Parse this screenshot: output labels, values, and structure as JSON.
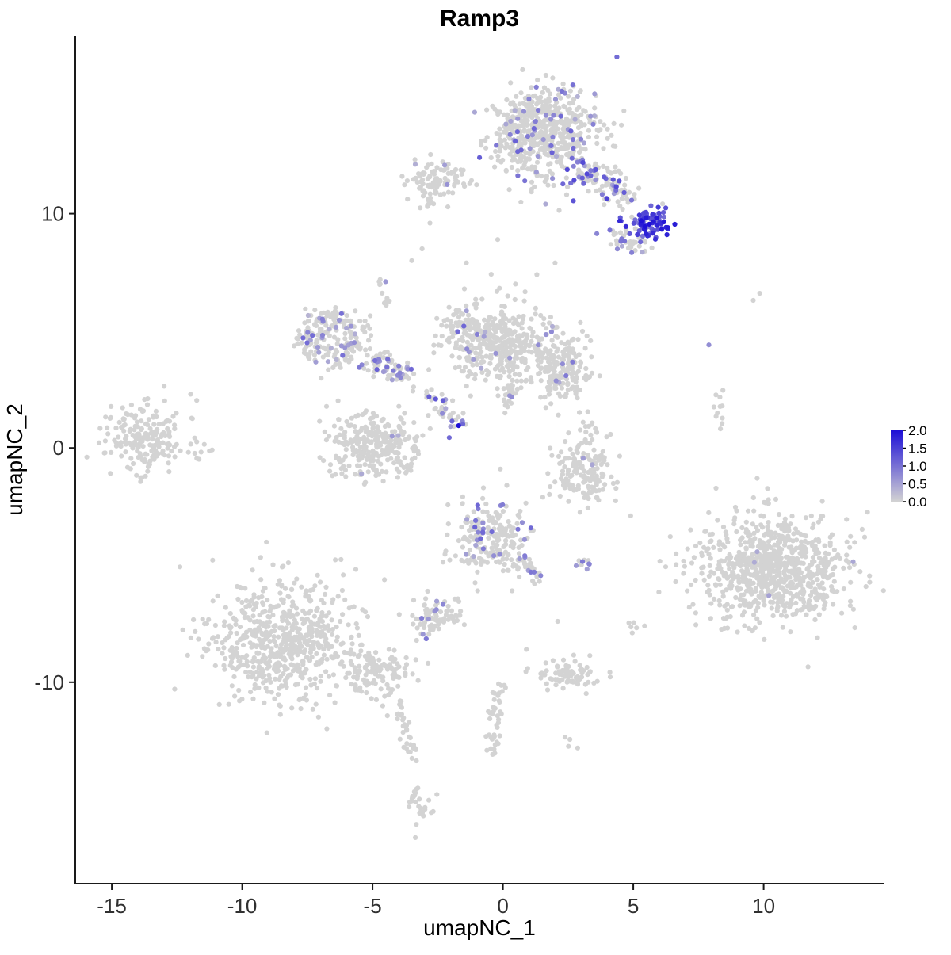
{
  "chart_data": {
    "type": "scatter",
    "title": "Ramp3",
    "xlabel": "umapNC_1",
    "ylabel": "umapNC_2",
    "xlim": [
      -16.4,
      14.6
    ],
    "ylim": [
      -18.6,
      17.6
    ],
    "x_ticks": [
      -15,
      -10,
      -5,
      0,
      5,
      10
    ],
    "y_ticks": [
      -10,
      0,
      10
    ],
    "grid": false,
    "point_radius": 3.1,
    "legend": {
      "position": "right",
      "vmin": 0.0,
      "vmax": 2.0,
      "tick_labels": [
        "2.0",
        "1.5",
        "1.0",
        "0.5",
        "0.0"
      ],
      "color_low": "#d3d3d3",
      "color_high": "#1d0fd6"
    },
    "clusters": [
      {
        "name": "top-main",
        "cx": 1.7,
        "cy": 13.5,
        "sx": 1.0,
        "sy": 1.0,
        "n": 460,
        "ef": 0.09,
        "vr": [
          0.3,
          1.2
        ]
      },
      {
        "name": "top-main-left-lobe",
        "cx": 0.7,
        "cy": 13.2,
        "sx": 0.5,
        "sy": 0.8,
        "n": 110,
        "ef": 0.05,
        "vr": [
          0.3,
          1.0
        ]
      },
      {
        "name": "top-left-small",
        "cx": -2.55,
        "cy": 11.4,
        "sx": 0.55,
        "sy": 0.45,
        "n": 100,
        "ef": 0.02,
        "vr": [
          0.3,
          0.7
        ]
      },
      {
        "name": "top-left-drip",
        "line": [
          -2.8,
          11.0,
          -2.95,
          10.1
        ],
        "sd": 0.12,
        "n": 10,
        "ef": 0
      },
      {
        "name": "arm-upper",
        "line": [
          2.7,
          12.1,
          4.7,
          10.7
        ],
        "sd": 0.33,
        "n": 105,
        "ef": 0.3,
        "vr": [
          0.4,
          1.5
        ]
      },
      {
        "name": "arm-hotspot",
        "cx": 5.55,
        "cy": 9.6,
        "sx": 0.42,
        "sy": 0.33,
        "n": 85,
        "ef": 0.8,
        "vr": [
          0.9,
          2.0
        ]
      },
      {
        "name": "arm-below",
        "cx": 4.8,
        "cy": 8.8,
        "sx": 0.5,
        "sy": 0.3,
        "n": 35,
        "ef": 0.25,
        "vr": [
          0.4,
          1.1
        ]
      },
      {
        "name": "mid-left-ring",
        "cx": -6.5,
        "cy": 4.7,
        "sx": 1.0,
        "sy": 0.85,
        "ring": true,
        "n": 200,
        "ef": 0.12,
        "vr": [
          0.3,
          1.1
        ]
      },
      {
        "name": "mid-left-arm",
        "line": [
          -5.4,
          3.9,
          -3.6,
          3.2
        ],
        "sd": 0.28,
        "n": 75,
        "ef": 0.3,
        "vr": [
          0.4,
          1.2
        ]
      },
      {
        "name": "mid-left-upstrand",
        "line": [
          -4.4,
          6.1,
          -4.6,
          7.2
        ],
        "sd": 0.15,
        "n": 10,
        "ef": 0.1,
        "vr": [
          0.3,
          0.7
        ]
      },
      {
        "name": "center-main",
        "cx": 0.2,
        "cy": 4.4,
        "sx": 1.05,
        "sy": 0.85,
        "n": 390,
        "ef": 0.02,
        "vr": [
          0.3,
          0.8
        ]
      },
      {
        "name": "center-left-ext",
        "cx": -1.5,
        "cy": 5.0,
        "sx": 0.45,
        "sy": 0.6,
        "n": 80,
        "ef": 0.05,
        "vr": [
          0.3,
          1.2
        ]
      },
      {
        "name": "center-right-lobe",
        "cx": 2.3,
        "cy": 3.4,
        "sx": 0.55,
        "sy": 0.8,
        "n": 150,
        "ef": 0.03,
        "vr": [
          0.3,
          0.9
        ]
      },
      {
        "name": "center-tail",
        "line": [
          0.3,
          3.0,
          0.05,
          1.7
        ],
        "sd": 0.22,
        "n": 35,
        "ef": 0.05,
        "vr": [
          0.3,
          0.8
        ]
      },
      {
        "name": "chain-center-low",
        "line": [
          -2.9,
          2.4,
          -1.6,
          0.9
        ],
        "sd": 0.25,
        "n": 40,
        "ef": 0.22,
        "vr": [
          0.4,
          1.3
        ]
      },
      {
        "name": "lower-mid-blob",
        "cx": -5.0,
        "cy": 0.1,
        "sx": 0.9,
        "sy": 0.75,
        "n": 280,
        "ef": 0.01,
        "vr": [
          0.3,
          0.6
        ]
      },
      {
        "name": "far-left",
        "cx": -13.8,
        "cy": 0.4,
        "sx": 0.8,
        "sy": 0.7,
        "n": 200,
        "ef": 0
      },
      {
        "name": "far-left-sparse",
        "cx": -12.1,
        "cy": 0.6,
        "sx": 0.6,
        "sy": 0.7,
        "n": 12,
        "ef": 0
      },
      {
        "name": "right-crescent",
        "cx": 3.1,
        "cy": -0.85,
        "sx": 0.62,
        "sy": 0.8,
        "n": 160,
        "ef": 0.01,
        "vr": [
          0.3,
          0.6
        ]
      },
      {
        "name": "crescent-sparse-above",
        "line": [
          3.1,
          1.6,
          3.4,
          0.3
        ],
        "sd": 0.18,
        "n": 10,
        "ef": 0
      },
      {
        "name": "bottom-right-large",
        "cx": 10.4,
        "cy": -5.2,
        "sx": 1.45,
        "sy": 1.15,
        "n": 820,
        "ef": 0.002,
        "vr": [
          0.4,
          0.8
        ]
      },
      {
        "name": "right-sparse-strand",
        "line": [
          8.25,
          0.7,
          8.45,
          2.7
        ],
        "sd": 0.12,
        "n": 11,
        "ef": 0
      },
      {
        "name": "bottom-center",
        "cx": -0.5,
        "cy": -3.9,
        "sx": 0.78,
        "sy": 0.75,
        "n": 200,
        "ef": 0.09,
        "vr": [
          0.4,
          1.2
        ]
      },
      {
        "name": "bottom-center-tail",
        "line": [
          0.5,
          -4.7,
          1.25,
          -5.5
        ],
        "sd": 0.18,
        "n": 30,
        "ef": 0.15,
        "vr": [
          0.4,
          1.0
        ]
      },
      {
        "name": "bottom-center-right-pair",
        "cx": 3.15,
        "cy": -4.9,
        "sx": 0.18,
        "sy": 0.12,
        "n": 7,
        "ef": 0.45,
        "vr": [
          0.5,
          1.0
        ]
      },
      {
        "name": "small-left-bottom",
        "cx": -2.6,
        "cy": -7.15,
        "sx": 0.5,
        "sy": 0.38,
        "n": 80,
        "ef": 0.06,
        "vr": [
          0.4,
          1.0
        ]
      },
      {
        "name": "bottom-left-large",
        "cx": -8.4,
        "cy": -8.2,
        "sx": 1.4,
        "sy": 1.3,
        "n": 640,
        "ef": 0
      },
      {
        "name": "bottom-left-knot",
        "cx": -4.8,
        "cy": -9.6,
        "sx": 0.65,
        "sy": 0.5,
        "n": 120,
        "ef": 0
      },
      {
        "name": "bottom-left-tail",
        "line": [
          -4.2,
          -10.6,
          -3.4,
          -13.2
        ],
        "sd": 0.17,
        "n": 38,
        "ef": 0
      },
      {
        "name": "tail-blob",
        "cx": -3.2,
        "cy": -15.3,
        "sx": 0.3,
        "sy": 0.5,
        "n": 28,
        "ef": 0
      },
      {
        "name": "small-bottom-mid",
        "cx": 2.4,
        "cy": -9.7,
        "sx": 0.55,
        "sy": 0.35,
        "n": 75,
        "ef": 0
      },
      {
        "name": "bottom-strand",
        "line": [
          -0.2,
          -10.2,
          -0.45,
          -13.1
        ],
        "sd": 0.14,
        "n": 42,
        "ef": 0
      },
      {
        "name": "sparse-dots-a",
        "cx": 5.15,
        "cy": -7.6,
        "sx": 0.28,
        "sy": 0.2,
        "n": 6,
        "ef": 0
      },
      {
        "name": "sparse-dots-b",
        "cx": 2.6,
        "cy": -12.6,
        "sx": 0.15,
        "sy": 0.2,
        "n": 4,
        "ef": 0
      }
    ],
    "singles": [
      [
        -3.5,
        8.0
      ],
      [
        -1.4,
        7.9
      ],
      [
        1.3,
        7.4
      ],
      [
        2.0,
        7.9
      ],
      [
        9.6,
        6.3
      ],
      [
        9.85,
        6.6
      ],
      [
        -2.8,
        9.6
      ],
      [
        -3.1,
        8.5
      ],
      [
        -0.2,
        8.9
      ],
      [
        -0.1,
        -0.9
      ],
      [
        0.15,
        -1.6
      ],
      [
        0.9,
        -8.6
      ],
      [
        2.1,
        -7.4
      ],
      [
        4.9,
        -2.9
      ],
      [
        7.4,
        -7.55
      ],
      [
        0.35,
        -6.1
      ]
    ],
    "highlights": [
      [
        5.45,
        9.45,
        2.0
      ],
      [
        5.62,
        9.55,
        2.0
      ],
      [
        5.78,
        9.66,
        1.9
      ],
      [
        5.9,
        9.5,
        1.8
      ],
      [
        5.55,
        9.85,
        1.6
      ],
      [
        6.05,
        9.6,
        1.7
      ],
      [
        5.3,
        9.7,
        1.4
      ],
      [
        4.35,
        11.15,
        1.4
      ],
      [
        3.95,
        11.5,
        1.1
      ],
      [
        3.5,
        11.85,
        1.0
      ],
      [
        4.65,
        10.9,
        1.2
      ],
      [
        3.05,
        12.3,
        0.9
      ],
      [
        2.7,
        10.55,
        1.3
      ],
      [
        1.0,
        14.9,
        0.8
      ],
      [
        1.65,
        14.2,
        0.7
      ],
      [
        0.95,
        13.3,
        0.9
      ],
      [
        1.85,
        12.9,
        1.0
      ],
      [
        2.5,
        13.6,
        0.6
      ],
      [
        4.1,
        9.3,
        1.0
      ],
      [
        3.6,
        9.15,
        0.8
      ],
      [
        -6.9,
        5.4,
        0.8
      ],
      [
        -6.15,
        3.95,
        1.0
      ],
      [
        -5.7,
        4.5,
        0.7
      ],
      [
        -7.1,
        4.3,
        0.6
      ],
      [
        -4.45,
        3.45,
        1.0
      ],
      [
        -4.2,
        3.3,
        0.9
      ],
      [
        -3.95,
        3.2,
        0.8
      ],
      [
        -1.7,
        0.95,
        2.0
      ],
      [
        -1.55,
        1.15,
        0.8
      ],
      [
        -1.5,
        5.2,
        1.1
      ],
      [
        -1.3,
        4.1,
        0.6
      ],
      [
        -4.5,
        7.1,
        0.6
      ],
      [
        -0.95,
        -2.6,
        0.9
      ],
      [
        -1.05,
        -3.1,
        1.0
      ],
      [
        -0.95,
        -3.6,
        0.8
      ],
      [
        -0.75,
        -4.3,
        0.9
      ],
      [
        -0.35,
        -4.6,
        0.7
      ],
      [
        1.2,
        -5.3,
        0.9
      ],
      [
        1.45,
        -5.45,
        0.8
      ],
      [
        3.05,
        -4.85,
        0.9
      ],
      [
        3.3,
        -4.95,
        0.8
      ],
      [
        -2.55,
        -6.9,
        0.7
      ],
      [
        -2.85,
        -7.3,
        0.6
      ],
      [
        10.2,
        -6.3,
        0.5
      ],
      [
        7.9,
        4.4,
        0.7
      ]
    ]
  }
}
